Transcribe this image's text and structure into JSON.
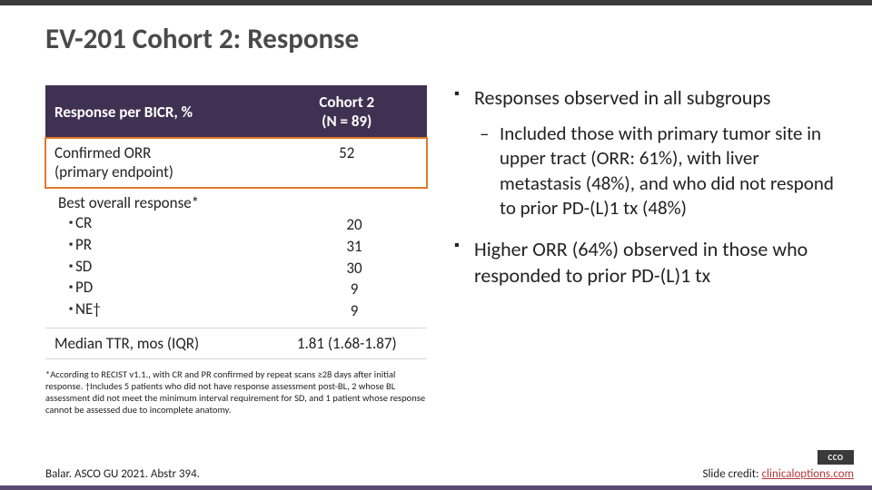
{
  "title": "EV-201 Cohort 2: Response",
  "colors": {
    "top_band": "#3a3a3a",
    "bottom_band": "#5a4a72",
    "table_header_bg": "#403152",
    "table_header_text": "#ffffff",
    "highlight_border": "#e07a2a",
    "text": "#222222",
    "link": "#b03a3a"
  },
  "table": {
    "header_col1": "Response per BICR, %",
    "header_col2_line1": "Cohort 2",
    "header_col2_line2": "(N = 89)",
    "rows": {
      "confirmed_orr_label": "Confirmed ORR\n(primary endpoint)",
      "confirmed_orr_value": "52",
      "best_overall_label": "Best overall response*",
      "items": [
        {
          "label": "CR",
          "value": "20"
        },
        {
          "label": "PR",
          "value": "31"
        },
        {
          "label": "SD",
          "value": "30"
        },
        {
          "label": "PD",
          "value": "9"
        },
        {
          "label": "NE†",
          "value": "9"
        }
      ],
      "median_ttr_label": "Median TTR, mos (IQR)",
      "median_ttr_value": "1.81 (1.68-1.87)"
    }
  },
  "footnote": "*According to RECIST v1.1., with CR and PR confirmed by repeat scans ≥28 days after initial response. †Includes 5 patients who did not have response assessment post-BL, 2 whose BL assessment did not meet the minimum interval requirement for SD, and 1 patient whose response cannot be assessed due to incomplete anatomy.",
  "bullets": {
    "b1": "Responses observed in all subgroups",
    "b1_sub": "Included those with primary tumor site in upper tract (ORR: 61%), with liver metastasis (48%), and who did not respond to prior PD-(L)1 tx (48%)",
    "b2": "Higher ORR (64%) observed in those who responded to prior PD-(L)1 tx"
  },
  "footer": {
    "citation": "Balar. ASCO GU 2021. Abstr 394.",
    "credit_prefix": "Slide credit: ",
    "credit_link_text": "clinicaloptions.com",
    "logo_text": "CCO"
  }
}
